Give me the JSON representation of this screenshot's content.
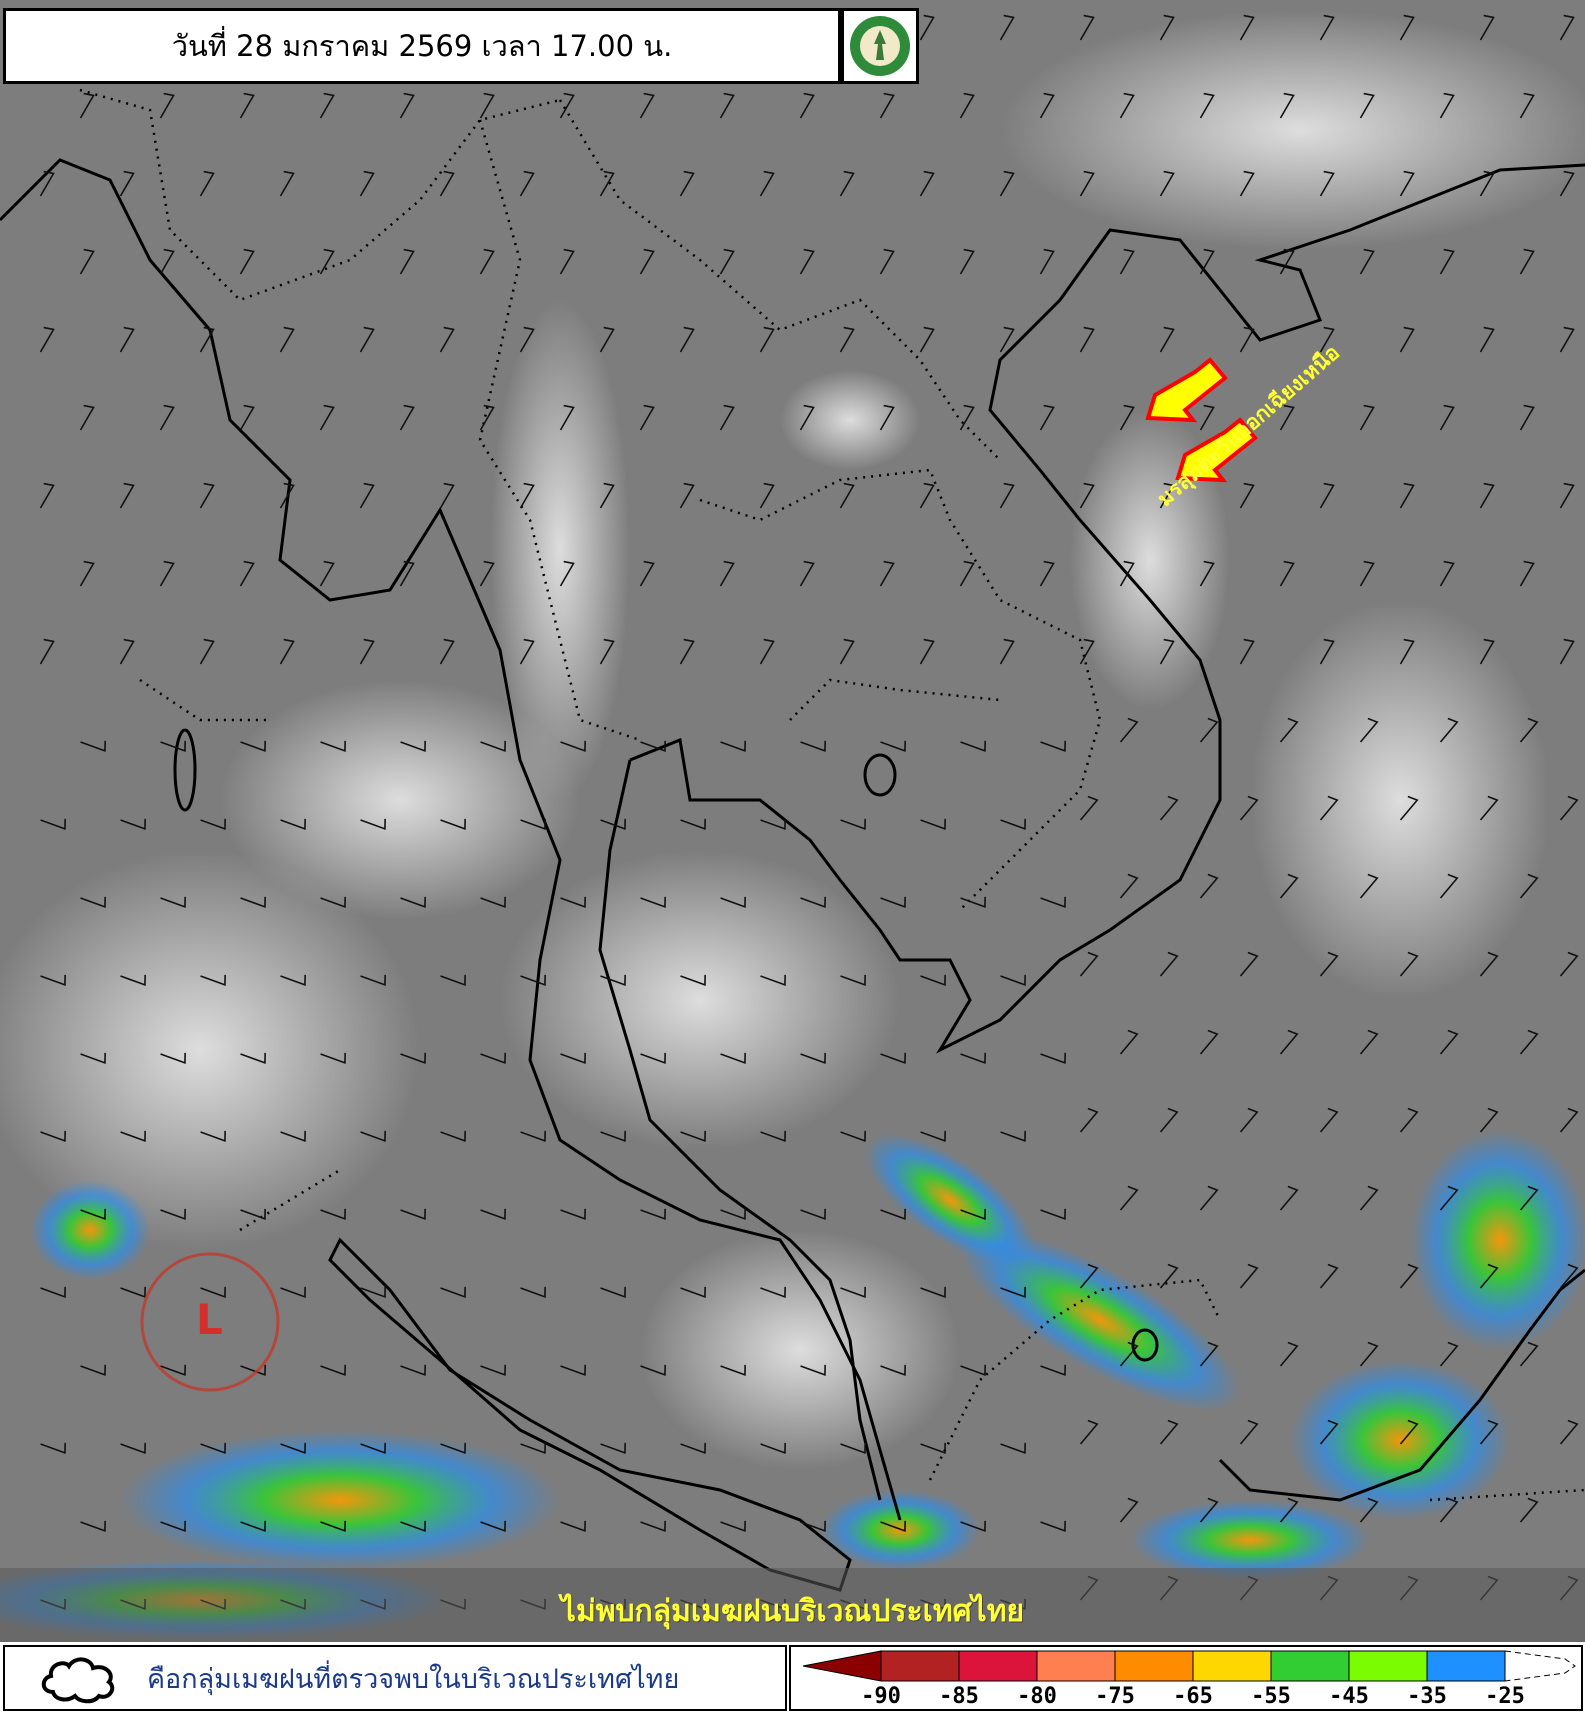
{
  "header": {
    "title": "วันที่ 28 มกราคม 2569 เวลา 17.00 น.",
    "logo": "Thai Meteorological Department seal"
  },
  "map": {
    "type": "infrared satellite image with wind barbs",
    "annotation": "มรสุมตะวันออกเฉียงเหนือ",
    "arrow_color": "#ffff00",
    "arrow_outline": "#ff0000",
    "low_pressure_label": "L",
    "low_pressure_color": "#d32f2f",
    "status_text": "ไม่พบกลุ่มเมฆฝนบริเวณประเทศไทย"
  },
  "legend": {
    "cloud_symbol": "cloud-outline-icon",
    "cloud_text": "คือกลุ่มเมฆฝนที่ตรวจพบในบริเวณประเทศไทย",
    "colorbar": {
      "colors": [
        "#8b0000",
        "#b22222",
        "#dc143c",
        "#ff7f50",
        "#ff8c00",
        "#ffd700",
        "#32cd32",
        "#7cfc00",
        "#1e90ff"
      ],
      "ticks": [
        "-90",
        "-85",
        "-80",
        "-75",
        "-65",
        "-55",
        "-45",
        "-35",
        "-25"
      ]
    }
  }
}
